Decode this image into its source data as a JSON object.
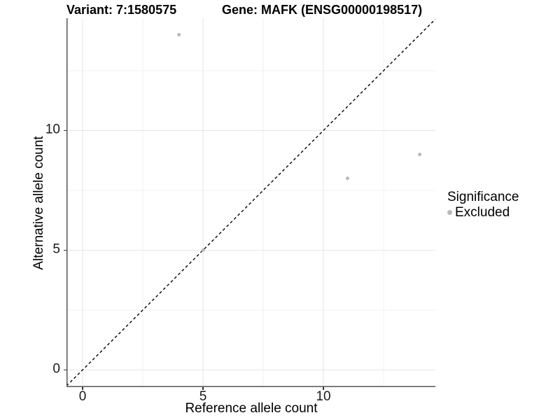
{
  "chart_data": {
    "type": "scatter",
    "title_left": "Variant: 7:1580575",
    "title_right": "Gene: MAFK (ENSG00000198517)",
    "xlabel": "Reference allele count",
    "ylabel": "Alternative allele count",
    "xlim": [
      -0.67,
      14.65
    ],
    "ylim": [
      -0.72,
      14.69
    ],
    "x_ticks": [
      0,
      5,
      10
    ],
    "y_ticks": [
      0,
      5,
      10
    ],
    "x_minor_ticks": [
      2.5,
      7.5,
      12.5
    ],
    "y_minor_ticks": [
      2.5,
      7.5,
      12.5
    ],
    "grid": "on",
    "legend_position": "right",
    "identity_line": {
      "slope": 1,
      "intercept": 0,
      "style": "dashed",
      "color": "#000000"
    },
    "series": [
      {
        "name": "Excluded",
        "color": "#b9b9b9",
        "points": [
          [
            4,
            14
          ],
          [
            5,
            5
          ],
          [
            11,
            8
          ],
          [
            14,
            9
          ]
        ]
      }
    ],
    "colors": {
      "background": "#ffffff",
      "grid_major": "#e6e6e6",
      "grid_minor": "#f2f2f2",
      "axis_line": "#555555",
      "tick_mark": "#333333",
      "point": "#b9b9b9"
    }
  },
  "legend": {
    "title": "Significance",
    "items": [
      {
        "label": "Excluded",
        "marker_color": "#b9b9b9"
      }
    ]
  }
}
